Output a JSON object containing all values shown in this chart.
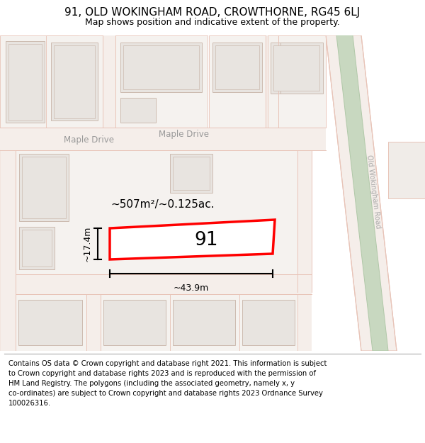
{
  "title": "91, OLD WOKINGHAM ROAD, CROWTHORNE, RG45 6LJ",
  "subtitle": "Map shows position and indicative extent of the property.",
  "footer": "Contains OS data © Crown copyright and database right 2021. This information is subject\nto Crown copyright and database rights 2023 and is reproduced with the permission of\nHM Land Registry. The polygons (including the associated geometry, namely x, y\nco-ordinates) are subject to Crown copyright and database rights 2023 Ordnance Survey\n100026316.",
  "bg_color": "#f7f3f0",
  "map_bg": "#ffffff",
  "road_color": "#f5eeea",
  "road_line": "#e8c4b8",
  "building_fill": "#e8e4e0",
  "building_stroke": "#ccbbb0",
  "highlight_fill": "#ffffff",
  "highlight_stroke": "#ff0000",
  "green_fill": "#c8d8c0",
  "green_stroke": "#b0c8a8",
  "road_label_color": "#aaaaaa",
  "street_label_color": "#999999",
  "area_label": "~507m²/~0.125ac.",
  "width_label": "~43.9m",
  "height_label": "~17.4m",
  "plot_number": "91",
  "road_label": "Old Wokingham Road",
  "street_label": "Maple Drive",
  "title_fontsize": 11,
  "subtitle_fontsize": 9,
  "footer_fontsize": 7.2
}
